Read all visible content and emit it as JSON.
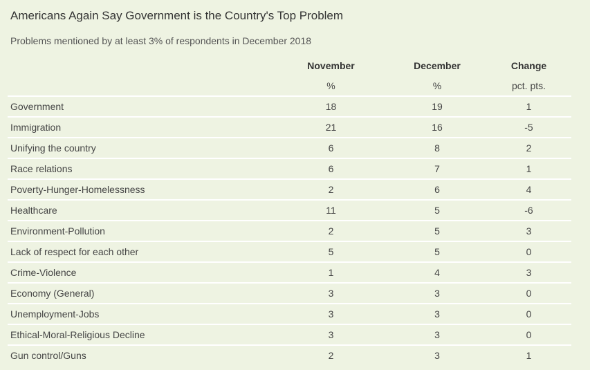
{
  "chart_data": {
    "type": "table",
    "title": "Americans Again Say Government is the Country's Top Problem",
    "subtitle": "Problems mentioned by at least 3% of respondents in December 2018",
    "columns": [
      {
        "header": "November",
        "unit": "%"
      },
      {
        "header": "December",
        "unit": "%"
      },
      {
        "header": "Change",
        "unit": "pct. pts."
      }
    ],
    "rows": [
      {
        "label": "Government",
        "november": "18",
        "december": "19",
        "change": "1"
      },
      {
        "label": "Immigration",
        "november": "21",
        "december": "16",
        "change": "-5"
      },
      {
        "label": "Unifying the country",
        "november": "6",
        "december": "8",
        "change": "2"
      },
      {
        "label": "Race relations",
        "november": "6",
        "december": "7",
        "change": "1"
      },
      {
        "label": "Poverty-Hunger-Homelessness",
        "november": "2",
        "december": "6",
        "change": "4"
      },
      {
        "label": "Healthcare",
        "november": "11",
        "december": "5",
        "change": "-6"
      },
      {
        "label": "Environment-Pollution",
        "november": "2",
        "december": "5",
        "change": "3"
      },
      {
        "label": "Lack of respect for each other",
        "november": "5",
        "december": "5",
        "change": "0"
      },
      {
        "label": "Crime-Violence",
        "november": "1",
        "december": "4",
        "change": "3"
      },
      {
        "label": "Economy (General)",
        "november": "3",
        "december": "3",
        "change": "0"
      },
      {
        "label": "Unemployment-Jobs",
        "november": "3",
        "december": "3",
        "change": "0"
      },
      {
        "label": "Ethical-Moral-Religious Decline",
        "november": "3",
        "december": "3",
        "change": "0"
      },
      {
        "label": "Gun control/Guns",
        "november": "2",
        "december": "3",
        "change": "1"
      }
    ]
  },
  "colors": {
    "background": "#eef3e2",
    "row_divider": "#ffffff",
    "text": "#444444"
  }
}
